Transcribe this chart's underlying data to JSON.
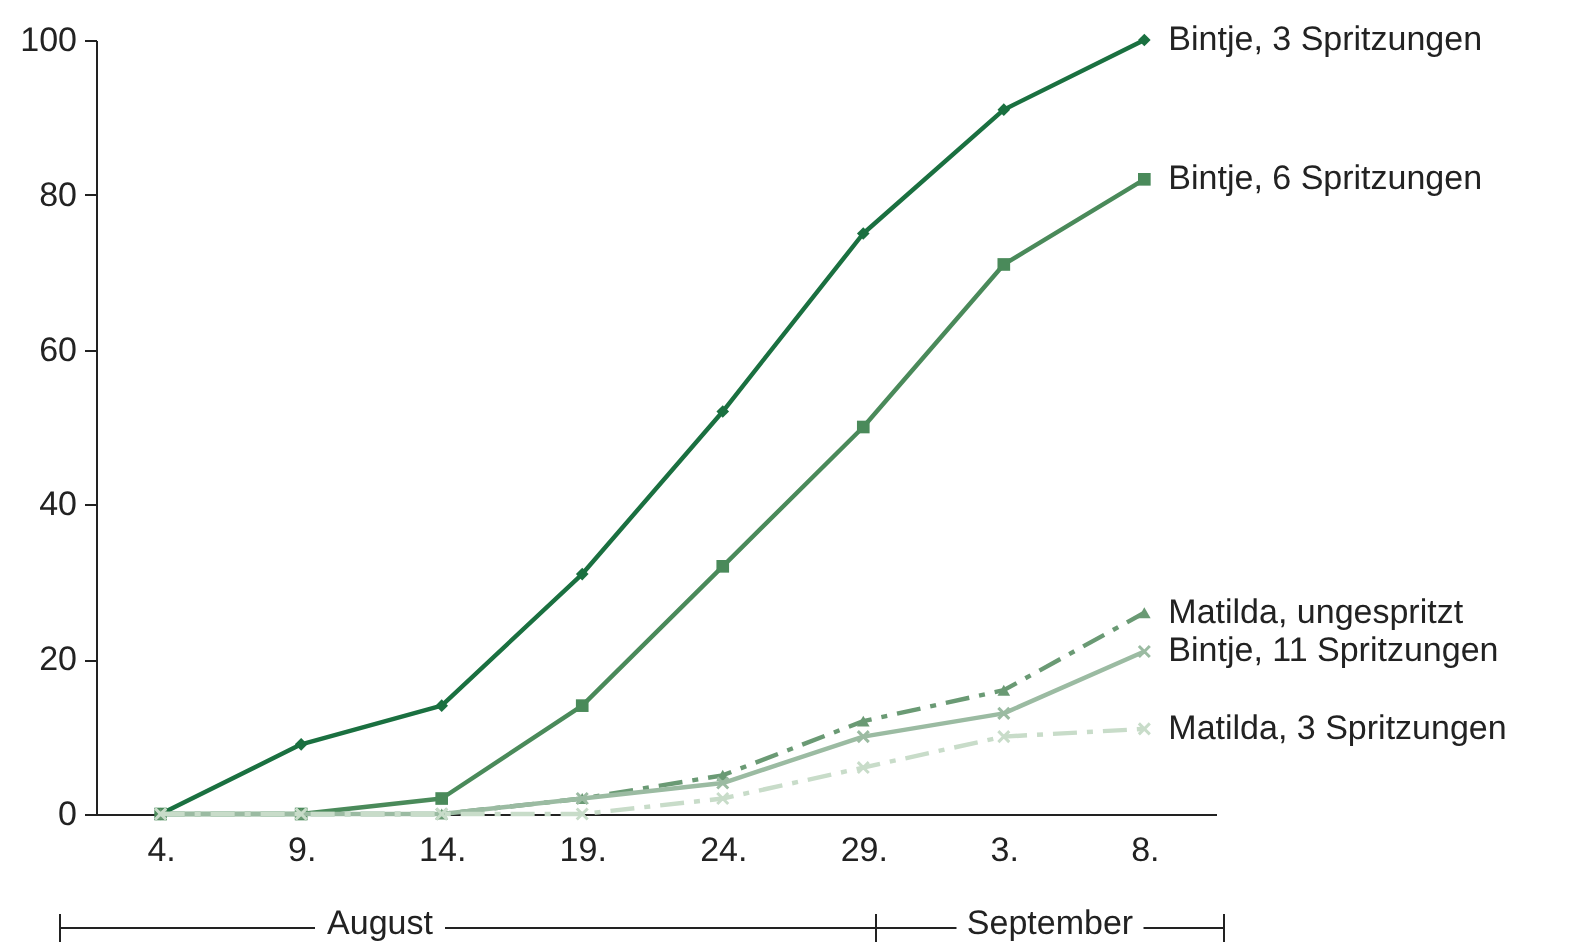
{
  "chart_data": {
    "type": "line",
    "categories": [
      "4.",
      "9.",
      "14.",
      "19.",
      "24.",
      "29.",
      "3.",
      "8."
    ],
    "ylim": [
      0,
      100
    ],
    "yticks": [
      0,
      20,
      40,
      60,
      80,
      100
    ],
    "annotations": [
      "August",
      "September"
    ],
    "series": [
      {
        "name": "Bintje, 3 Spritzungen",
        "color": "#1a7040",
        "marker": "diamond",
        "line_style": "solid",
        "values": [
          0,
          9,
          14,
          31,
          52,
          75,
          91,
          100
        ]
      },
      {
        "name": "Bintje, 6 Spritzungen",
        "color": "#4a8a5a",
        "marker": "square",
        "line_style": "solid",
        "values": [
          0,
          0,
          2,
          14,
          32,
          50,
          71,
          82
        ]
      },
      {
        "name": "Matilda, ungespritzt",
        "color": "#6a9a74",
        "marker": "triangle",
        "line_style": "dashed",
        "values": [
          0,
          0,
          0,
          2,
          5,
          12,
          16,
          26
        ]
      },
      {
        "name": "Bintje, 11 Spritzungen",
        "color": "#9bbba2",
        "marker": "cross",
        "line_style": "solid",
        "values": [
          0,
          0,
          0,
          2,
          4,
          10,
          13,
          21
        ]
      },
      {
        "name": "Matilda, 3 Spritzungen",
        "color": "#c8dcc9",
        "marker": "cross",
        "line_style": "dashed",
        "values": [
          0,
          0,
          0,
          0,
          2,
          6,
          10,
          11
        ]
      }
    ]
  }
}
